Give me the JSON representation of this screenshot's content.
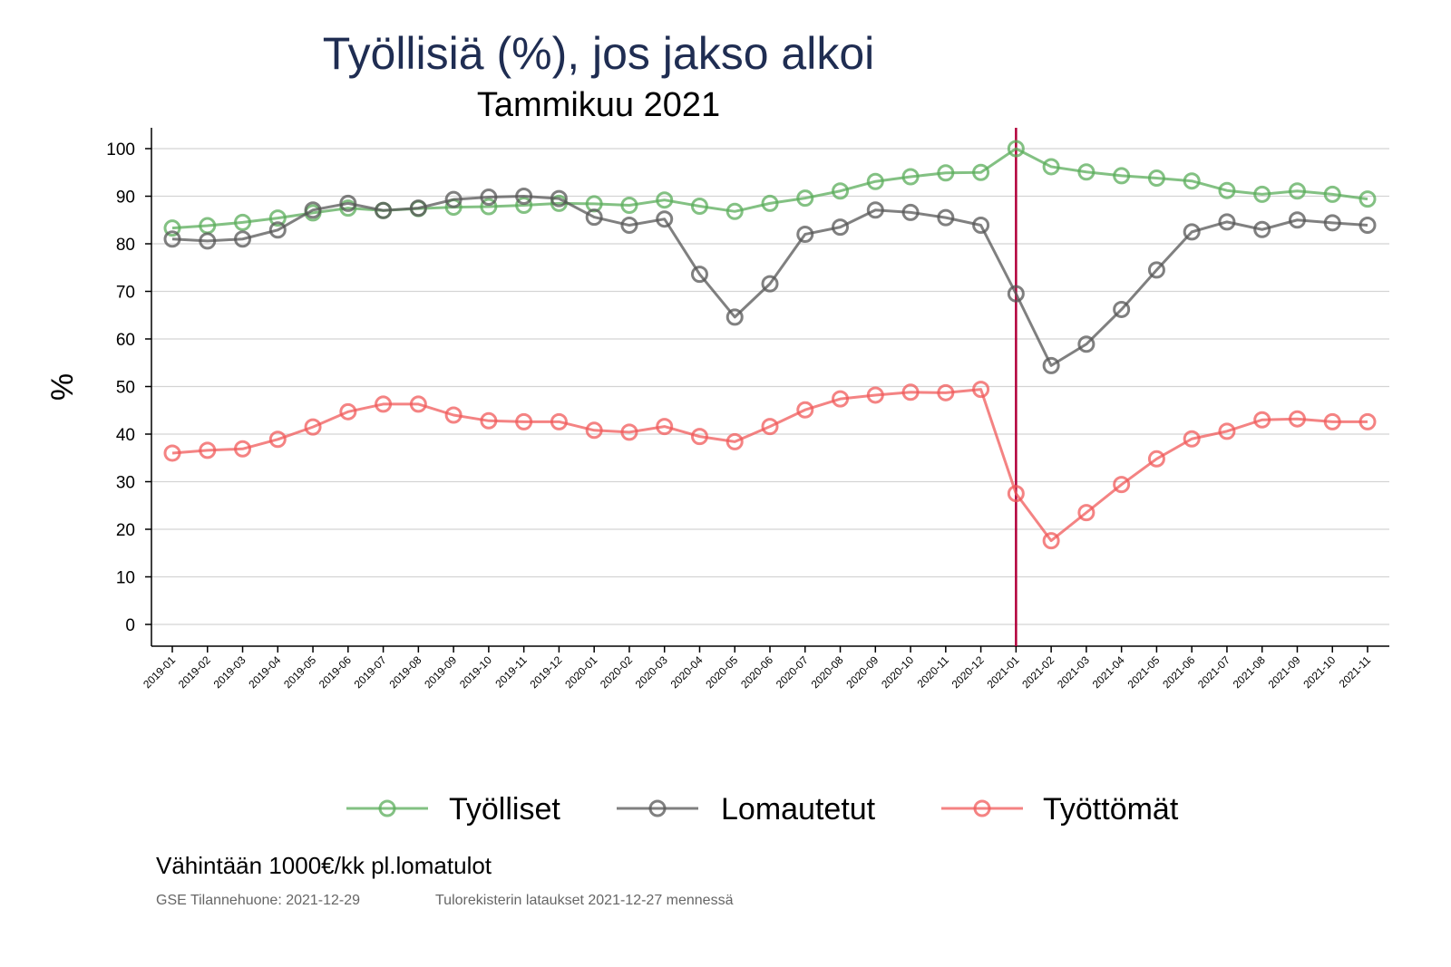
{
  "chart_data": {
    "type": "line",
    "title": "Työllisiä (%), jos jakso alkoi",
    "subtitle": "Tammikuu 2021",
    "xlabel": "",
    "ylabel": "%",
    "ylim": [
      0,
      100
    ],
    "yticks": [
      0,
      10,
      20,
      30,
      40,
      50,
      60,
      70,
      80,
      90,
      100
    ],
    "grid": true,
    "legend_position": "bottom",
    "reference_line": {
      "x": "2021-01",
      "color": "#b2003a"
    },
    "categories": [
      "2019-01",
      "2019-02",
      "2019-03",
      "2019-04",
      "2019-05",
      "2019-06",
      "2019-07",
      "2019-08",
      "2019-09",
      "2019-10",
      "2019-11",
      "2019-12",
      "2020-01",
      "2020-02",
      "2020-03",
      "2020-04",
      "2020-05",
      "2020-06",
      "2020-07",
      "2020-08",
      "2020-09",
      "2020-10",
      "2020-11",
      "2020-12",
      "2021-01",
      "2021-02",
      "2021-03",
      "2021-04",
      "2021-05",
      "2021-06",
      "2021-07",
      "2021-08",
      "2021-09",
      "2021-10",
      "2021-11"
    ],
    "series": [
      {
        "name": "Työlliset",
        "color": "#5aac5a",
        "values": [
          83.3,
          83.8,
          84.5,
          85.4,
          86.5,
          87.5,
          87.0,
          87.4,
          87.7,
          87.8,
          88.1,
          88.5,
          88.4,
          88.1,
          89.2,
          87.9,
          86.8,
          88.5,
          89.6,
          91.1,
          93.1,
          94.1,
          94.9,
          95.0,
          100.0,
          96.2,
          95.1,
          94.3,
          93.8,
          93.2,
          91.2,
          90.4,
          91.1,
          90.4,
          89.4
        ]
      },
      {
        "name": "Lomautetut",
        "color": "#555555",
        "values": [
          81.0,
          80.6,
          81.0,
          82.9,
          87.1,
          88.5,
          87.0,
          87.5,
          89.3,
          89.8,
          90.0,
          89.5,
          85.6,
          83.9,
          85.2,
          73.6,
          64.6,
          71.6,
          82.0,
          83.5,
          87.1,
          86.6,
          85.5,
          83.9,
          69.5,
          54.4,
          58.9,
          66.2,
          74.5,
          82.5,
          84.6,
          83.0,
          85.0,
          84.4,
          83.9
        ]
      },
      {
        "name": "Työttömät",
        "color": "#f05a5a",
        "values": [
          36.0,
          36.6,
          36.9,
          38.9,
          41.5,
          44.7,
          46.3,
          46.3,
          44.0,
          42.8,
          42.6,
          42.6,
          40.8,
          40.4,
          41.6,
          39.5,
          38.4,
          41.6,
          45.1,
          47.4,
          48.2,
          48.8,
          48.7,
          49.4,
          27.5,
          17.6,
          23.5,
          29.4,
          34.8,
          39.0,
          40.6,
          43.0,
          43.2,
          42.6,
          42.6
        ]
      }
    ]
  },
  "footer": {
    "note": "Vähintään 1000€/kk pl.lomatulot",
    "source_left": "GSE Tilannehuone: 2021-12-29",
    "source_right": "Tulorekisterin lataukset 2021-12-27 mennessä"
  }
}
